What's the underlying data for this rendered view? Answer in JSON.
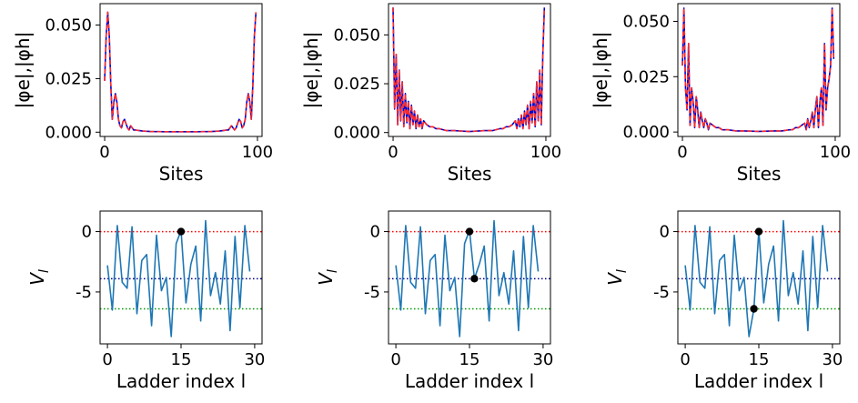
{
  "chart_data": [
    {
      "type": "line",
      "panel": "top-left",
      "xlabel": "Sites",
      "ylabel": "|φe|,|φh|",
      "xlim": [
        -3,
        103
      ],
      "ylim": [
        -0.002,
        0.06
      ],
      "xticks": [
        0,
        100
      ],
      "yticks": [
        0.0,
        0.025,
        0.05
      ],
      "ytick_labels": [
        "0.000",
        "0.025",
        "0.050"
      ],
      "series": [
        {
          "color": "#0000cc",
          "style": "solid",
          "x": [
            0,
            1,
            2,
            3,
            4,
            5,
            6,
            7,
            8,
            9,
            10,
            11,
            12,
            13,
            14,
            15,
            16,
            17,
            18,
            19,
            20,
            25,
            30,
            40,
            50,
            60,
            70,
            75,
            80,
            81,
            82,
            83,
            84,
            85,
            86,
            87,
            88,
            89,
            90,
            91,
            92,
            93,
            94,
            95,
            96,
            97,
            98,
            99
          ],
          "values": [
            0.024,
            0.045,
            0.056,
            0.045,
            0.022,
            0.006,
            0.014,
            0.018,
            0.014,
            0.006,
            0.003,
            0.002,
            0.005,
            0.006,
            0.004,
            0.002,
            0.001,
            0.003,
            0.002,
            0.001,
            0.001,
            0.0005,
            0.0003,
            0.0002,
            0.0002,
            0.0002,
            0.0003,
            0.0005,
            0.001,
            0.001,
            0.002,
            0.003,
            0.002,
            0.001,
            0.002,
            0.004,
            0.006,
            0.005,
            0.002,
            0.003,
            0.006,
            0.014,
            0.018,
            0.014,
            0.006,
            0.022,
            0.045,
            0.056
          ]
        },
        {
          "color": "#ff2a2a",
          "style": "dashed",
          "x": [
            0,
            1,
            2,
            3,
            4,
            5,
            6,
            7,
            8,
            9,
            10,
            11,
            12,
            13,
            14,
            15,
            16,
            17,
            18,
            19,
            20,
            25,
            30,
            40,
            50,
            60,
            70,
            75,
            80,
            81,
            82,
            83,
            84,
            85,
            86,
            87,
            88,
            89,
            90,
            91,
            92,
            93,
            94,
            95,
            96,
            97,
            98,
            99
          ],
          "values": [
            0.024,
            0.045,
            0.056,
            0.045,
            0.022,
            0.006,
            0.014,
            0.018,
            0.014,
            0.006,
            0.003,
            0.002,
            0.005,
            0.006,
            0.004,
            0.002,
            0.001,
            0.003,
            0.002,
            0.001,
            0.001,
            0.0005,
            0.0003,
            0.0002,
            0.0002,
            0.0002,
            0.0003,
            0.0005,
            0.001,
            0.001,
            0.002,
            0.003,
            0.002,
            0.001,
            0.002,
            0.004,
            0.006,
            0.005,
            0.002,
            0.003,
            0.006,
            0.014,
            0.018,
            0.014,
            0.006,
            0.022,
            0.045,
            0.056
          ]
        }
      ]
    },
    {
      "type": "line",
      "panel": "top-middle",
      "xlabel": "Sites",
      "ylabel": "|φe|,|φh|",
      "xlim": [
        -3,
        103
      ],
      "ylim": [
        -0.002,
        0.066
      ],
      "xticks": [
        0,
        100
      ],
      "yticks": [
        0.0,
        0.025,
        0.05
      ],
      "ytick_labels": [
        "0.000",
        "0.025",
        "0.050"
      ],
      "series": [
        {
          "color": "#0000cc",
          "style": "solid",
          "x": [
            0,
            1,
            2,
            3,
            4,
            5,
            6,
            7,
            8,
            9,
            10,
            11,
            12,
            13,
            14,
            15,
            16,
            17,
            18,
            19,
            20,
            22,
            24,
            26,
            28,
            30,
            35,
            40,
            50,
            60,
            65,
            70,
            72,
            74,
            76,
            78,
            80,
            81,
            82,
            83,
            84,
            85,
            86,
            87,
            88,
            89,
            90,
            91,
            92,
            93,
            94,
            95,
            96,
            97,
            98,
            99
          ],
          "values": [
            0.064,
            0.012,
            0.04,
            0.004,
            0.032,
            0.006,
            0.026,
            0.003,
            0.02,
            0.005,
            0.016,
            0.002,
            0.014,
            0.004,
            0.011,
            0.002,
            0.009,
            0.003,
            0.007,
            0.002,
            0.006,
            0.004,
            0.003,
            0.003,
            0.002,
            0.002,
            0.001,
            0.001,
            0.0005,
            0.001,
            0.001,
            0.002,
            0.002,
            0.003,
            0.003,
            0.004,
            0.006,
            0.002,
            0.007,
            0.003,
            0.009,
            0.002,
            0.011,
            0.004,
            0.014,
            0.002,
            0.016,
            0.005,
            0.02,
            0.003,
            0.026,
            0.006,
            0.032,
            0.004,
            0.04,
            0.064
          ]
        },
        {
          "color": "#ff2a2a",
          "style": "dashed",
          "x": [
            0,
            1,
            2,
            3,
            4,
            5,
            6,
            7,
            8,
            9,
            10,
            11,
            12,
            13,
            14,
            15,
            16,
            17,
            18,
            19,
            20,
            22,
            24,
            26,
            28,
            30,
            35,
            40,
            50,
            60,
            65,
            70,
            72,
            74,
            76,
            78,
            80,
            81,
            82,
            83,
            84,
            85,
            86,
            87,
            88,
            89,
            90,
            91,
            92,
            93,
            94,
            95,
            96,
            97,
            98,
            99
          ],
          "values": [
            0.064,
            0.012,
            0.04,
            0.004,
            0.032,
            0.006,
            0.026,
            0.003,
            0.02,
            0.005,
            0.016,
            0.002,
            0.014,
            0.004,
            0.011,
            0.002,
            0.009,
            0.003,
            0.007,
            0.002,
            0.006,
            0.004,
            0.003,
            0.003,
            0.002,
            0.002,
            0.001,
            0.001,
            0.0005,
            0.001,
            0.001,
            0.002,
            0.002,
            0.003,
            0.003,
            0.004,
            0.006,
            0.002,
            0.007,
            0.003,
            0.009,
            0.002,
            0.011,
            0.004,
            0.014,
            0.002,
            0.016,
            0.005,
            0.02,
            0.003,
            0.026,
            0.006,
            0.032,
            0.004,
            0.04,
            0.064
          ]
        }
      ]
    },
    {
      "type": "line",
      "panel": "top-right",
      "xlabel": "Sites",
      "ylabel": "|φe|,|φh|",
      "xlim": [
        -3,
        103
      ],
      "ylim": [
        -0.002,
        0.058
      ],
      "xticks": [
        0,
        100
      ],
      "yticks": [
        0.0,
        0.025,
        0.05
      ],
      "ytick_labels": [
        "0.000",
        "0.025",
        "0.050"
      ],
      "series": [
        {
          "color": "#0000cc",
          "style": "solid",
          "x": [
            0,
            1,
            2,
            3,
            4,
            5,
            6,
            7,
            8,
            9,
            10,
            11,
            12,
            13,
            14,
            15,
            16,
            17,
            18,
            20,
            22,
            24,
            26,
            28,
            30,
            35,
            40,
            50,
            60,
            65,
            70,
            72,
            74,
            76,
            78,
            80,
            81,
            82,
            83,
            84,
            85,
            86,
            87,
            88,
            89,
            90,
            91,
            92,
            93,
            94,
            95,
            96,
            97,
            98,
            99
          ],
          "values": [
            0.03,
            0.056,
            0.02,
            0.01,
            0.04,
            0.003,
            0.02,
            0.014,
            0.002,
            0.016,
            0.01,
            0.002,
            0.009,
            0.005,
            0.002,
            0.006,
            0.004,
            0.001,
            0.004,
            0.003,
            0.002,
            0.002,
            0.001,
            0.001,
            0.001,
            0.0005,
            0.0005,
            0.0003,
            0.0005,
            0.0005,
            0.001,
            0.001,
            0.002,
            0.002,
            0.003,
            0.004,
            0.001,
            0.006,
            0.002,
            0.005,
            0.009,
            0.002,
            0.01,
            0.016,
            0.002,
            0.014,
            0.02,
            0.003,
            0.04,
            0.01,
            0.02,
            0.024,
            0.03,
            0.056,
            0.033
          ]
        },
        {
          "color": "#ff2a2a",
          "style": "dashed",
          "x": [
            0,
            1,
            2,
            3,
            4,
            5,
            6,
            7,
            8,
            9,
            10,
            11,
            12,
            13,
            14,
            15,
            16,
            17,
            18,
            20,
            22,
            24,
            26,
            28,
            30,
            35,
            40,
            50,
            60,
            65,
            70,
            72,
            74,
            76,
            78,
            80,
            81,
            82,
            83,
            84,
            85,
            86,
            87,
            88,
            89,
            90,
            91,
            92,
            93,
            94,
            95,
            96,
            97,
            98,
            99
          ],
          "values": [
            0.03,
            0.056,
            0.02,
            0.01,
            0.04,
            0.003,
            0.02,
            0.014,
            0.002,
            0.016,
            0.01,
            0.002,
            0.009,
            0.005,
            0.002,
            0.006,
            0.004,
            0.001,
            0.004,
            0.003,
            0.002,
            0.002,
            0.001,
            0.001,
            0.001,
            0.0005,
            0.0005,
            0.0003,
            0.0005,
            0.0005,
            0.001,
            0.001,
            0.002,
            0.002,
            0.003,
            0.004,
            0.001,
            0.006,
            0.002,
            0.005,
            0.009,
            0.002,
            0.01,
            0.016,
            0.002,
            0.014,
            0.02,
            0.003,
            0.04,
            0.01,
            0.02,
            0.024,
            0.03,
            0.056,
            0.033
          ]
        }
      ]
    },
    {
      "type": "line",
      "panel": "bottom-left",
      "xlabel": "Ladder index l",
      "ylabel": "V_l",
      "xlim": [
        -1.5,
        31.5
      ],
      "ylim": [
        -9.3,
        1.7
      ],
      "xticks": [
        0,
        15,
        30
      ],
      "yticks": [
        0,
        -5
      ],
      "hlines": [
        {
          "y": 0.0,
          "color": "#ff0000"
        },
        {
          "y": -3.9,
          "color": "#00008b"
        },
        {
          "y": -6.4,
          "color": "#009900"
        }
      ],
      "markers": [
        {
          "x": 15,
          "y": 0.0,
          "color": "#000000"
        }
      ],
      "series": [
        {
          "color": "#1f77b4",
          "x": [
            0,
            1,
            2,
            3,
            4,
            5,
            6,
            7,
            8,
            9,
            10,
            11,
            12,
            13,
            14,
            15,
            16,
            17,
            18,
            19,
            20,
            21,
            22,
            23,
            24,
            25,
            26,
            27,
            28,
            29
          ],
          "values": [
            -2.8,
            -6.5,
            0.5,
            -4.2,
            -4.7,
            0.4,
            -6.8,
            -2.4,
            -1.9,
            -7.8,
            -0.3,
            -4.9,
            -3.8,
            -8.7,
            -1.0,
            0.1,
            -5.9,
            -2.7,
            -1.2,
            -7.4,
            0.9,
            -5.3,
            -3.4,
            -6.0,
            -1.6,
            -8.2,
            -0.4,
            -6.3,
            0.5,
            -3.3
          ]
        }
      ]
    },
    {
      "type": "line",
      "panel": "bottom-middle",
      "xlabel": "Ladder index l",
      "ylabel": "V_l",
      "xlim": [
        -1.5,
        31.5
      ],
      "ylim": [
        -9.3,
        1.7
      ],
      "xticks": [
        0,
        15,
        30
      ],
      "yticks": [
        0,
        -5
      ],
      "hlines": [
        {
          "y": 0.0,
          "color": "#ff0000"
        },
        {
          "y": -3.9,
          "color": "#00008b"
        },
        {
          "y": -6.4,
          "color": "#009900"
        }
      ],
      "markers": [
        {
          "x": 15,
          "y": 0.0,
          "color": "#000000"
        },
        {
          "x": 16,
          "y": -3.9,
          "color": "#000000"
        }
      ],
      "series": [
        {
          "color": "#1f77b4",
          "x": [
            0,
            1,
            2,
            3,
            4,
            5,
            6,
            7,
            8,
            9,
            10,
            11,
            12,
            13,
            14,
            15,
            16,
            17,
            18,
            19,
            20,
            21,
            22,
            23,
            24,
            25,
            26,
            27,
            28,
            29
          ],
          "values": [
            -2.8,
            -6.5,
            0.5,
            -4.2,
            -4.7,
            0.4,
            -6.8,
            -2.4,
            -1.9,
            -7.8,
            -0.3,
            -4.9,
            -3.8,
            -8.7,
            -1.0,
            0.1,
            -3.9,
            -2.7,
            -1.2,
            -7.4,
            0.9,
            -5.3,
            -3.4,
            -6.0,
            -1.6,
            -8.2,
            -0.4,
            -6.3,
            0.5,
            -3.3
          ]
        }
      ]
    },
    {
      "type": "line",
      "panel": "bottom-right",
      "xlabel": "Ladder index l",
      "ylabel": "V_l",
      "xlim": [
        -1.5,
        31.5
      ],
      "ylim": [
        -9.3,
        1.7
      ],
      "xticks": [
        0,
        15,
        30
      ],
      "yticks": [
        0,
        -5
      ],
      "hlines": [
        {
          "y": 0.0,
          "color": "#ff0000"
        },
        {
          "y": -3.9,
          "color": "#00008b"
        },
        {
          "y": -6.4,
          "color": "#009900"
        }
      ],
      "markers": [
        {
          "x": 15,
          "y": 0.0,
          "color": "#000000"
        },
        {
          "x": 14,
          "y": -6.4,
          "color": "#000000"
        }
      ],
      "series": [
        {
          "color": "#1f77b4",
          "x": [
            0,
            1,
            2,
            3,
            4,
            5,
            6,
            7,
            8,
            9,
            10,
            11,
            12,
            13,
            14,
            15,
            16,
            17,
            18,
            19,
            20,
            21,
            22,
            23,
            24,
            25,
            26,
            27,
            28,
            29
          ],
          "values": [
            -2.8,
            -6.5,
            0.5,
            -4.2,
            -4.7,
            0.4,
            -6.8,
            -2.4,
            -1.9,
            -7.8,
            -0.3,
            -4.9,
            -3.8,
            -8.7,
            -6.4,
            0.1,
            -5.9,
            -2.7,
            -1.2,
            -7.4,
            0.9,
            -5.3,
            -3.4,
            -6.0,
            -1.6,
            -8.2,
            -0.4,
            -6.3,
            0.5,
            -3.3
          ]
        }
      ]
    }
  ]
}
